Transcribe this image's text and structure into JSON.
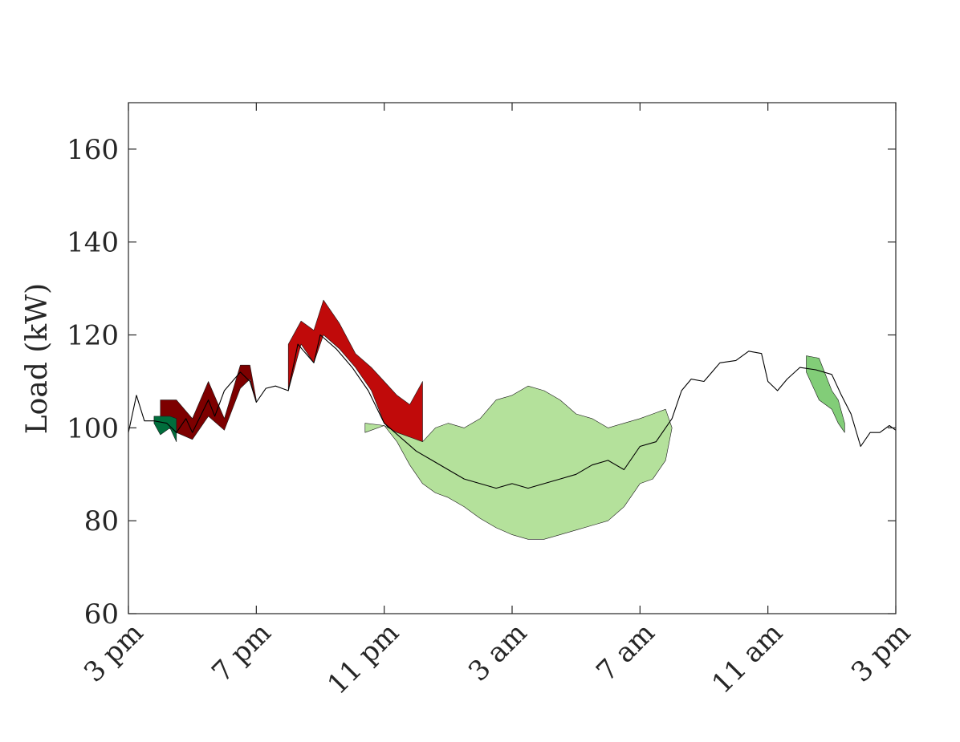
{
  "chart_data": {
    "type": "area",
    "title": "",
    "xlabel": "",
    "ylabel": "Load (kW)",
    "xlim": [
      0,
      24
    ],
    "ylim": [
      60,
      170
    ],
    "grid": false,
    "x_ticks": [
      {
        "value": 0,
        "label": "3 pm"
      },
      {
        "value": 4,
        "label": "7 pm"
      },
      {
        "value": 8,
        "label": "11 pm"
      },
      {
        "value": 12,
        "label": "3 am"
      },
      {
        "value": 16,
        "label": "7 am"
      },
      {
        "value": 20,
        "label": "11 am"
      },
      {
        "value": 24,
        "label": "3 pm"
      }
    ],
    "y_ticks": [
      60,
      80,
      100,
      120,
      140,
      160
    ],
    "colors": {
      "baseline": "#000000",
      "red": "#c00a0a",
      "dark_red": "#7d0000",
      "light_green": "#b4e19b",
      "green_fill": "#82cd78",
      "dark_green": "#006e3c"
    },
    "baseline": {
      "x": [
        0,
        0.25,
        0.5,
        0.8,
        1.2,
        1.5,
        1.8,
        2.0,
        2.5,
        2.7,
        3.0,
        3.5,
        3.8,
        4.0,
        4.3,
        4.6,
        4.8,
        5.0,
        5.3,
        5.8,
        6.0,
        6.5,
        7.0,
        7.5,
        8.0,
        8.5,
        9.0,
        9.5,
        10.0,
        10.5,
        11.0,
        11.5,
        12.0,
        12.5,
        13.0,
        13.5,
        14.0,
        14.5,
        15.0,
        15.5,
        16.0,
        16.5,
        17.0,
        17.3,
        17.6,
        18.0,
        18.5,
        19.0,
        19.4,
        19.8,
        20.0,
        20.3,
        20.6,
        21.0,
        21.5,
        22.0,
        22.3,
        22.6,
        22.9,
        23.2,
        23.5,
        23.8,
        24.0
      ],
      "y": [
        99,
        107,
        101.5,
        101.5,
        101,
        99,
        102,
        99,
        106,
        102.5,
        108,
        112,
        110,
        105.5,
        108.5,
        109,
        108.5,
        108,
        118,
        114,
        120,
        117,
        113,
        108,
        101,
        98,
        95,
        93,
        91,
        89,
        88,
        87,
        88,
        87,
        88,
        89,
        90,
        92,
        93,
        91,
        96,
        97,
        102,
        108,
        110.5,
        110,
        114,
        114.5,
        116.5,
        116,
        110,
        108,
        110.5,
        113,
        112.5,
        111.5,
        107,
        103,
        96,
        99,
        99,
        100.5,
        99.5
      ]
    },
    "series": [
      {
        "color": "red",
        "x": [
          5.0,
          5.4,
          5.8,
          6.1,
          6.6,
          7.1,
          7.6,
          8.0,
          8.4,
          8.8,
          9.2
        ],
        "lower": [
          108,
          118,
          114,
          120,
          117,
          113,
          108,
          101,
          98,
          96,
          94
        ],
        "upper": [
          118,
          123,
          121,
          127.5,
          122.5,
          116,
          113,
          110,
          107,
          105,
          110
        ]
      },
      {
        "color": "dark_red",
        "x": [
          1.0,
          1.5,
          2.0,
          2.5,
          3.0,
          3.5,
          3.8,
          4.0
        ],
        "lower": [
          101,
          99,
          97.5,
          102.5,
          99.5,
          108.5,
          110.5,
          105.5
        ],
        "upper": [
          106,
          106,
          102,
          110,
          102,
          113.5,
          113.5,
          106
        ]
      },
      {
        "color": "dark_green",
        "x": [
          0.8,
          1.0,
          1.3,
          1.5
        ],
        "lower": [
          101,
          98.5,
          100,
          97
        ],
        "upper": [
          102.5,
          102.5,
          102.5,
          102
        ]
      },
      {
        "color": "light_green",
        "x": [
          7.4,
          8.0,
          8.4,
          8.8,
          9.2,
          9.6,
          10.0,
          10.5,
          11.0,
          11.5,
          12.0,
          12.5,
          13.0,
          13.5,
          14.0,
          14.5,
          15.0,
          15.5,
          16.0,
          16.4,
          16.8,
          17.0
        ],
        "lower": [
          99,
          100.5,
          97,
          92,
          88,
          86,
          85,
          83,
          80.5,
          78.5,
          77,
          76,
          76,
          77,
          78,
          79,
          80,
          83,
          88,
          89,
          93,
          100
        ],
        "upper": [
          101,
          100.5,
          99,
          98,
          97,
          100,
          101,
          100,
          102,
          106,
          107,
          109,
          108,
          106,
          103,
          102,
          100,
          101,
          102,
          103,
          104,
          100
        ]
      },
      {
        "color": "green_fill",
        "x": [
          21.2,
          21.6,
          22.0,
          22.2,
          22.4
        ],
        "lower": [
          112,
          106,
          104,
          101,
          99
        ],
        "upper": [
          115.5,
          115,
          108,
          106,
          101
        ]
      }
    ]
  }
}
